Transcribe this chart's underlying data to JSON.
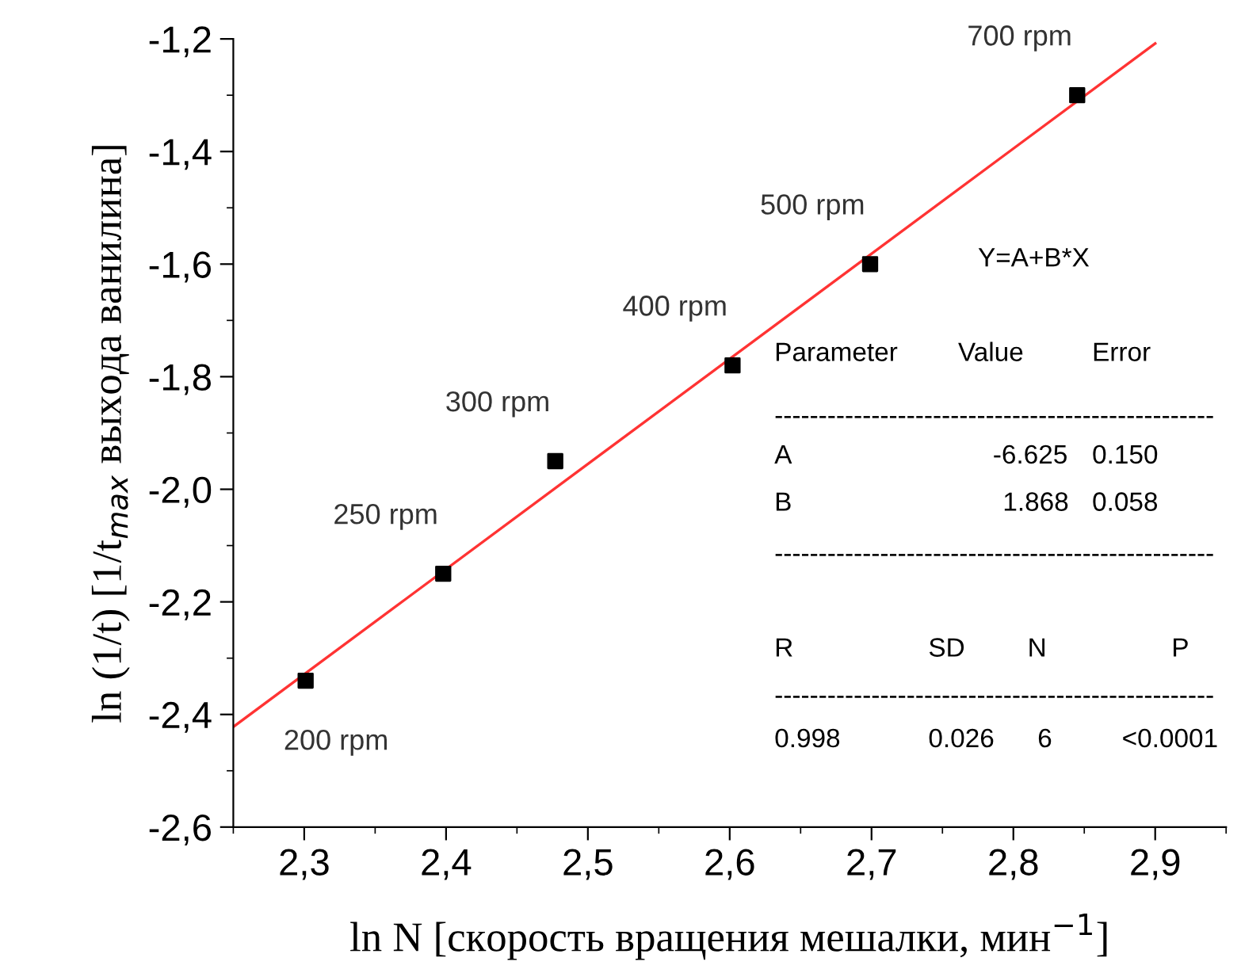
{
  "chart_data": {
    "type": "scatter",
    "xlabel": "ln N [скорость вращения мешалки, мин$^{−1}$]",
    "ylabel": "ln (1/t) [1/t$_{max}$ выхода ванилина]",
    "x": [
      2.301,
      2.398,
      2.477,
      2.602,
      2.699,
      2.845
    ],
    "series": [
      {
        "color": "#000000",
        "marker": "square",
        "values": [
          -2.34,
          -2.15,
          -1.95,
          -1.78,
          -1.6,
          -1.3
        ]
      },
      {
        "type": "line",
        "color": "#ff3333",
        "x": [
          2.25,
          2.9
        ],
        "values": [
          -2.422,
          -1.208
        ]
      }
    ],
    "xlim": [
      2.25,
      2.95
    ],
    "ylim": [
      -2.6,
      -1.2
    ],
    "xticks": [
      {
        "value": 2.3,
        "label": "2,3"
      },
      {
        "value": 2.4,
        "label": "2,4"
      },
      {
        "value": 2.5,
        "label": "2,5"
      },
      {
        "value": 2.6,
        "label": "2,6"
      },
      {
        "value": 2.7,
        "label": "2,7"
      },
      {
        "value": 2.8,
        "label": "2,8"
      },
      {
        "value": 2.9,
        "label": "2,9"
      }
    ],
    "yticks": [
      {
        "value": -2.6,
        "label": "-2,6"
      },
      {
        "value": -2.4,
        "label": "-2,4"
      },
      {
        "value": -2.2,
        "label": "-2,2"
      },
      {
        "value": -2.0,
        "label": "-2,0"
      },
      {
        "value": -1.8,
        "label": "-1,8"
      },
      {
        "value": -1.6,
        "label": "-1,6"
      },
      {
        "value": -1.4,
        "label": "-1,4"
      },
      {
        "value": -1.2,
        "label": "-1,2"
      }
    ],
    "grid": false,
    "legend": false,
    "annotations": [
      {
        "text": "200 rpm",
        "x": 2.301,
        "y": -2.34
      },
      {
        "text": "250 rpm",
        "x": 2.398,
        "y": -2.15
      },
      {
        "text": "300 rpm",
        "x": 2.477,
        "y": -1.95
      },
      {
        "text": "400 rpm",
        "x": 2.602,
        "y": -1.78
      },
      {
        "text": "500 rpm",
        "x": 2.699,
        "y": -1.6
      },
      {
        "text": "700 rpm",
        "x": 2.845,
        "y": -1.3
      },
      "Y=A+B*X",
      "Parameter",
      "Value",
      "Error",
      "--------------------------------------------------",
      "A",
      "-6.625",
      "0.150",
      "B",
      "1.868",
      "0.058",
      "--------------------------------------------------",
      "R",
      "SD",
      "N",
      "P",
      "--------------------------------------------------",
      "0.998",
      "0.026",
      "6",
      "<0.0001"
    ]
  }
}
